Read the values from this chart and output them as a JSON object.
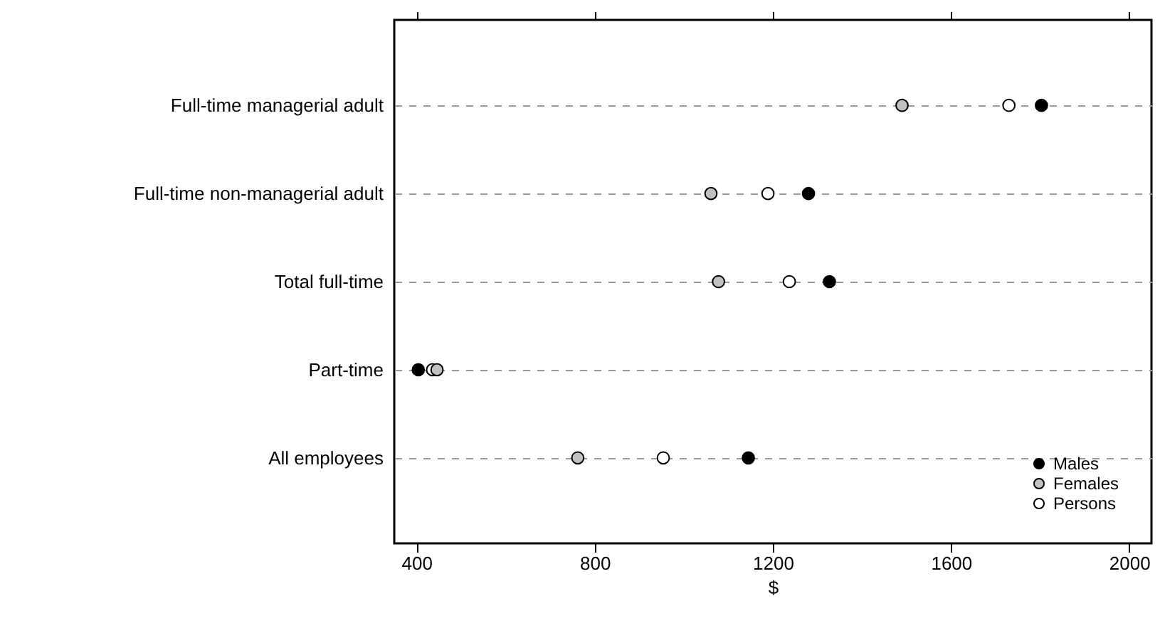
{
  "chart_data": {
    "type": "scatter",
    "xlabel": "$",
    "categories": [
      "Full-time managerial adult",
      "Full-time non-managerial adult",
      "Total full-time",
      "Part-time",
      "All employees"
    ],
    "orientation": "horizontal",
    "series": [
      {
        "name": "Males",
        "color": "#000000",
        "values": [
          1803,
          1280,
          1327,
          404,
          1145
        ]
      },
      {
        "name": "Females",
        "color": "#c0c0c0",
        "values": [
          1490,
          1061,
          1078,
          446,
          762
        ]
      },
      {
        "name": "Persons",
        "color": "#ffffff",
        "values": [
          1730,
          1189,
          1237,
          436,
          954
        ]
      }
    ],
    "xlim": [
      350,
      2050
    ],
    "xticks": [
      400,
      800,
      1200,
      1600,
      2000
    ],
    "grid": "y",
    "legend": "bottom right",
    "marker": "circle"
  }
}
